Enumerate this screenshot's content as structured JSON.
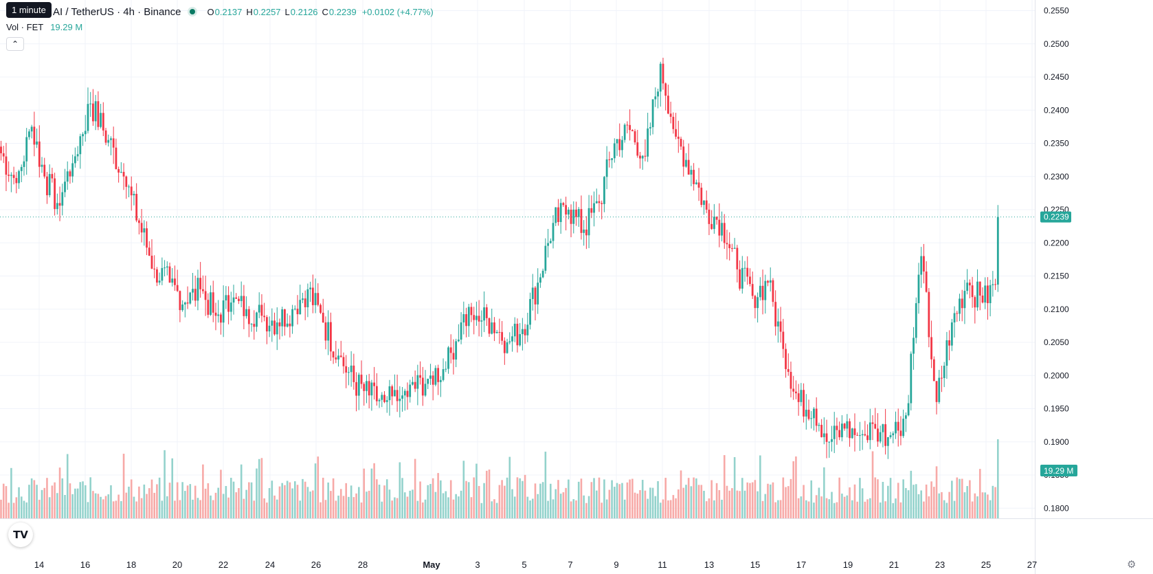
{
  "tooltip": "1 minute",
  "legend": {
    "symbol": "AI / TetherUS · 4h · Binance",
    "open_key": "O",
    "open": "0.2137",
    "high_key": "H",
    "high": "0.2257",
    "low_key": "L",
    "low": "0.2126",
    "close_key": "C",
    "close": "0.2239",
    "change": "+0.0102 (+4.77%)"
  },
  "volume_legend": {
    "label": "Vol · FET",
    "value": "19.29 M"
  },
  "collapse_icon": "chevron-up-icon",
  "logo_text": "TV",
  "colors": {
    "up": "#26a69a",
    "down": "#f23645",
    "up_volume": "#93d2cc",
    "down_volume": "#f7a9a7",
    "grid": "#f0f3fa",
    "text": "#131722"
  },
  "chart_data": {
    "type": "candlestick",
    "price_axis": {
      "ticks": [
        "0.2550",
        "0.2500",
        "0.2450",
        "0.2400",
        "0.2350",
        "0.2300",
        "0.2250",
        "0.2200",
        "0.2150",
        "0.2100",
        "0.2050",
        "0.2000",
        "0.1950",
        "0.1900",
        "0.1850",
        "0.1800"
      ]
    },
    "time_axis": {
      "ticks": [
        "14",
        "16",
        "18",
        "20",
        "22",
        "24",
        "26",
        "28",
        "May",
        "3",
        "5",
        "7",
        "9",
        "11",
        "13",
        "15",
        "17",
        "19",
        "21",
        "23",
        "25",
        "27"
      ]
    },
    "last_price_label": "0.2239",
    "last_volume_label": "19.29 M",
    "anchors": [
      {
        "i": 0,
        "c": 0.2335
      },
      {
        "i": 6,
        "c": 0.229
      },
      {
        "i": 12,
        "c": 0.2375
      },
      {
        "i": 17,
        "c": 0.23
      },
      {
        "i": 22,
        "c": 0.226
      },
      {
        "i": 28,
        "c": 0.232
      },
      {
        "i": 35,
        "c": 0.241
      },
      {
        "i": 42,
        "c": 0.2355
      },
      {
        "i": 48,
        "c": 0.23
      },
      {
        "i": 54,
        "c": 0.223
      },
      {
        "i": 60,
        "c": 0.216
      },
      {
        "i": 66,
        "c": 0.214
      },
      {
        "i": 72,
        "c": 0.211
      },
      {
        "i": 78,
        "c": 0.213
      },
      {
        "i": 84,
        "c": 0.209
      },
      {
        "i": 90,
        "c": 0.211
      },
      {
        "i": 96,
        "c": 0.21
      },
      {
        "i": 102,
        "c": 0.209
      },
      {
        "i": 108,
        "c": 0.208
      },
      {
        "i": 114,
        "c": 0.21
      },
      {
        "i": 120,
        "c": 0.213
      },
      {
        "i": 126,
        "c": 0.208
      },
      {
        "i": 132,
        "c": 0.203
      },
      {
        "i": 138,
        "c": 0.199
      },
      {
        "i": 144,
        "c": 0.197
      },
      {
        "i": 150,
        "c": 0.196
      },
      {
        "i": 156,
        "c": 0.1965
      },
      {
        "i": 162,
        "c": 0.198
      },
      {
        "i": 168,
        "c": 0.2
      },
      {
        "i": 174,
        "c": 0.201
      },
      {
        "i": 180,
        "c": 0.208
      },
      {
        "i": 186,
        "c": 0.209
      },
      {
        "i": 192,
        "c": 0.208
      },
      {
        "i": 198,
        "c": 0.205
      },
      {
        "i": 204,
        "c": 0.207
      },
      {
        "i": 210,
        "c": 0.214
      },
      {
        "i": 216,
        "c": 0.223
      },
      {
        "i": 222,
        "c": 0.225
      },
      {
        "i": 228,
        "c": 0.222
      },
      {
        "i": 234,
        "c": 0.226
      },
      {
        "i": 240,
        "c": 0.235
      },
      {
        "i": 246,
        "c": 0.237
      },
      {
        "i": 252,
        "c": 0.233
      },
      {
        "i": 258,
        "c": 0.247
      },
      {
        "i": 264,
        "c": 0.236
      },
      {
        "i": 270,
        "c": 0.231
      },
      {
        "i": 276,
        "c": 0.225
      },
      {
        "i": 282,
        "c": 0.223
      },
      {
        "i": 288,
        "c": 0.216
      },
      {
        "i": 294,
        "c": 0.212
      },
      {
        "i": 300,
        "c": 0.214
      },
      {
        "i": 306,
        "c": 0.204
      },
      {
        "i": 312,
        "c": 0.196
      },
      {
        "i": 318,
        "c": 0.195
      },
      {
        "i": 324,
        "c": 0.19
      },
      {
        "i": 330,
        "c": 0.192
      },
      {
        "i": 336,
        "c": 0.191
      },
      {
        "i": 342,
        "c": 0.192
      },
      {
        "i": 348,
        "c": 0.191
      },
      {
        "i": 354,
        "c": 0.194
      },
      {
        "i": 360,
        "c": 0.218
      },
      {
        "i": 366,
        "c": 0.196
      },
      {
        "i": 372,
        "c": 0.208
      },
      {
        "i": 378,
        "c": 0.214
      },
      {
        "i": 384,
        "c": 0.211
      },
      {
        "i": 389,
        "c": 0.2137
      },
      {
        "i": 390,
        "c": 0.2239
      }
    ],
    "last_candle": {
      "open": 0.2137,
      "high": 0.2257,
      "low": 0.2126,
      "close": 0.2239
    },
    "candle_count": 391
  }
}
